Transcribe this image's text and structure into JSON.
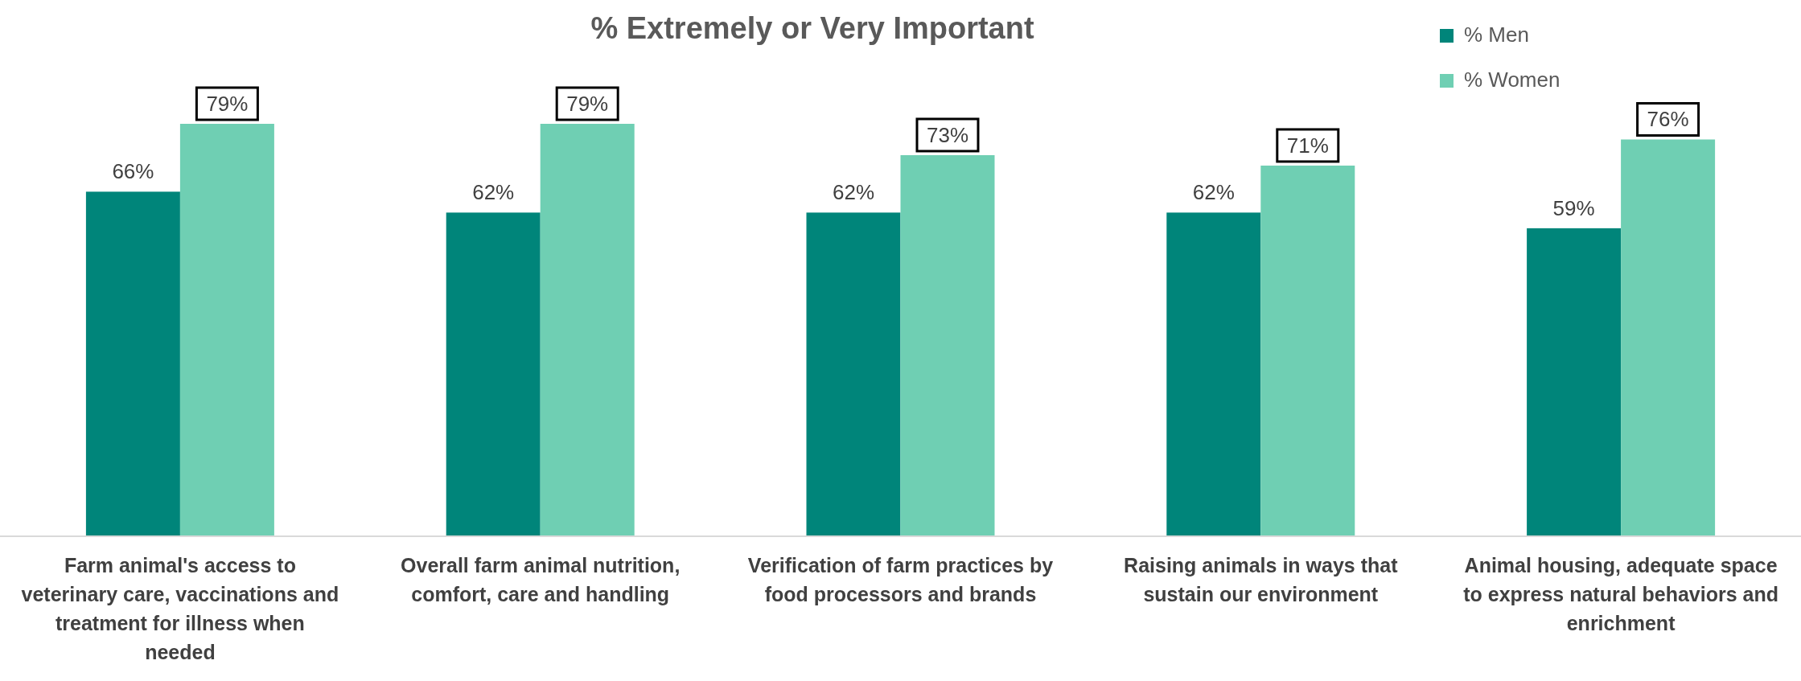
{
  "chart_data": {
    "type": "bar",
    "title": "% Extremely or Very Important",
    "categories": [
      "Farm animal's access to veterinary care, vaccinations and treatment for illness when needed",
      "Overall farm animal nutrition, comfort, care and handling",
      "Verification of farm practices by food processors and brands",
      "Raising animals in ways that sustain our environment",
      "Animal housing, adequate space to express natural behaviors and enrichment"
    ],
    "series": [
      {
        "name": "% Men",
        "color": "#00857a",
        "values": [
          66,
          62,
          62,
          62,
          59
        ],
        "value_labels": [
          "66%",
          "62%",
          "62%",
          "62%",
          "59%"
        ]
      },
      {
        "name": "% Women",
        "color": "#6fcfb3",
        "values": [
          79,
          79,
          73,
          71,
          76
        ],
        "value_labels": [
          "79%",
          "79%",
          "73%",
          "71%",
          "76%"
        ]
      }
    ],
    "legend": "top right"
  }
}
